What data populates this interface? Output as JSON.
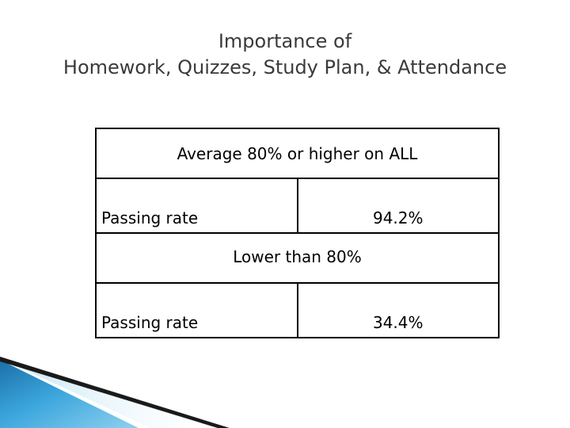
{
  "title": {
    "line1": "Importance of",
    "line2": "Homework, Quizzes, Study Plan, & Attendance"
  },
  "table": {
    "groups": [
      {
        "header": "Average 80% or higher on ALL",
        "label": "Passing rate",
        "value": "94.2%"
      },
      {
        "header": "Lower than 80%",
        "label": "Passing rate",
        "value": "34.4%"
      }
    ]
  },
  "colors": {
    "title_text": "#3a3a3a",
    "table_border": "#000000",
    "decoration_blue": "#2c8fc8",
    "decoration_dark": "#1a1a1a"
  }
}
